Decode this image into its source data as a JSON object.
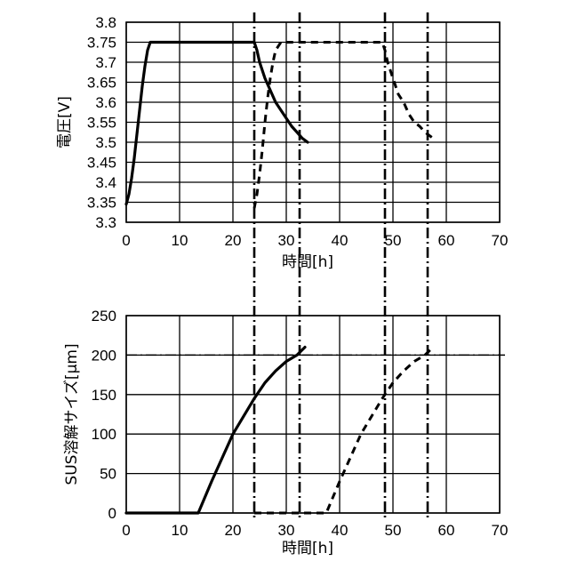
{
  "chart_data": [
    {
      "type": "line",
      "ylabel": "電圧[V]",
      "xlabel": "時間[h]",
      "xlim": [
        0,
        70
      ],
      "ylim": [
        3.3,
        3.8
      ],
      "xticks": [
        0,
        10,
        20,
        30,
        40,
        50,
        60,
        70
      ],
      "yticks": [
        3.3,
        3.35,
        3.4,
        3.45,
        3.5,
        3.55,
        3.6,
        3.65,
        3.7,
        3.75,
        3.8
      ],
      "xtick_labels": [
        "0",
        "10",
        "20",
        "30",
        "40",
        "50",
        "60",
        "70"
      ],
      "ytick_labels": [
        "3.3",
        "3.35",
        "3.4",
        "3.45",
        "3.5",
        "3.55",
        "3.6",
        "3.65",
        "3.7",
        "3.75",
        "3.8"
      ],
      "grid": true,
      "series": [
        {
          "style": "solid",
          "x": [
            0,
            0.5,
            1,
            1.5,
            2,
            2.5,
            3,
            3.5,
            4,
            4.5,
            24,
            24.5,
            25,
            26,
            27,
            28,
            29,
            30,
            31,
            32,
            33,
            34
          ],
          "y": [
            3.345,
            3.37,
            3.41,
            3.46,
            3.52,
            3.58,
            3.64,
            3.69,
            3.73,
            3.75,
            3.75,
            3.73,
            3.7,
            3.66,
            3.63,
            3.6,
            3.58,
            3.56,
            3.54,
            3.525,
            3.51,
            3.5
          ]
        },
        {
          "style": "dashed",
          "x": [
            24,
            24.5,
            25,
            25.5,
            26,
            26.5,
            27,
            27.5,
            28,
            29,
            48,
            48.5,
            49,
            50,
            51,
            52,
            53,
            54,
            55,
            56,
            57,
            58
          ],
          "y": [
            3.335,
            3.37,
            3.42,
            3.48,
            3.55,
            3.61,
            3.66,
            3.7,
            3.73,
            3.75,
            3.75,
            3.73,
            3.7,
            3.66,
            3.62,
            3.6,
            3.57,
            3.55,
            3.54,
            3.525,
            3.515,
            3.505
          ]
        }
      ],
      "vertical_lines": [
        24,
        32.5,
        48.5,
        56.5
      ]
    },
    {
      "type": "line",
      "ylabel": "SUS溶解サイズ[μm]",
      "xlabel": "時間[h]",
      "xlim": [
        0,
        70
      ],
      "ylim": [
        0,
        250
      ],
      "xticks": [
        0,
        10,
        20,
        30,
        40,
        50,
        60,
        70
      ],
      "yticks": [
        0,
        50,
        100,
        150,
        200,
        250
      ],
      "xtick_labels": [
        "0",
        "10",
        "20",
        "30",
        "40",
        "50",
        "60",
        "70"
      ],
      "ytick_labels": [
        "0",
        "50",
        "100",
        "150",
        "200",
        "250"
      ],
      "grid": true,
      "series": [
        {
          "style": "solid",
          "x": [
            0,
            13.5,
            16,
            20,
            24,
            26,
            28,
            30,
            32,
            33.5
          ],
          "y": [
            0,
            0,
            40,
            100,
            145,
            165,
            180,
            192,
            200,
            210
          ]
        },
        {
          "style": "dashed",
          "x": [
            24,
            37.5,
            40,
            44,
            48,
            50,
            52,
            54,
            56,
            57.5
          ],
          "y": [
            0,
            0,
            40,
            100,
            145,
            165,
            180,
            192,
            200,
            210
          ]
        }
      ],
      "horizontal_lines": [
        200
      ],
      "vertical_lines": [
        24,
        32.5,
        48.5,
        56.5
      ]
    }
  ]
}
